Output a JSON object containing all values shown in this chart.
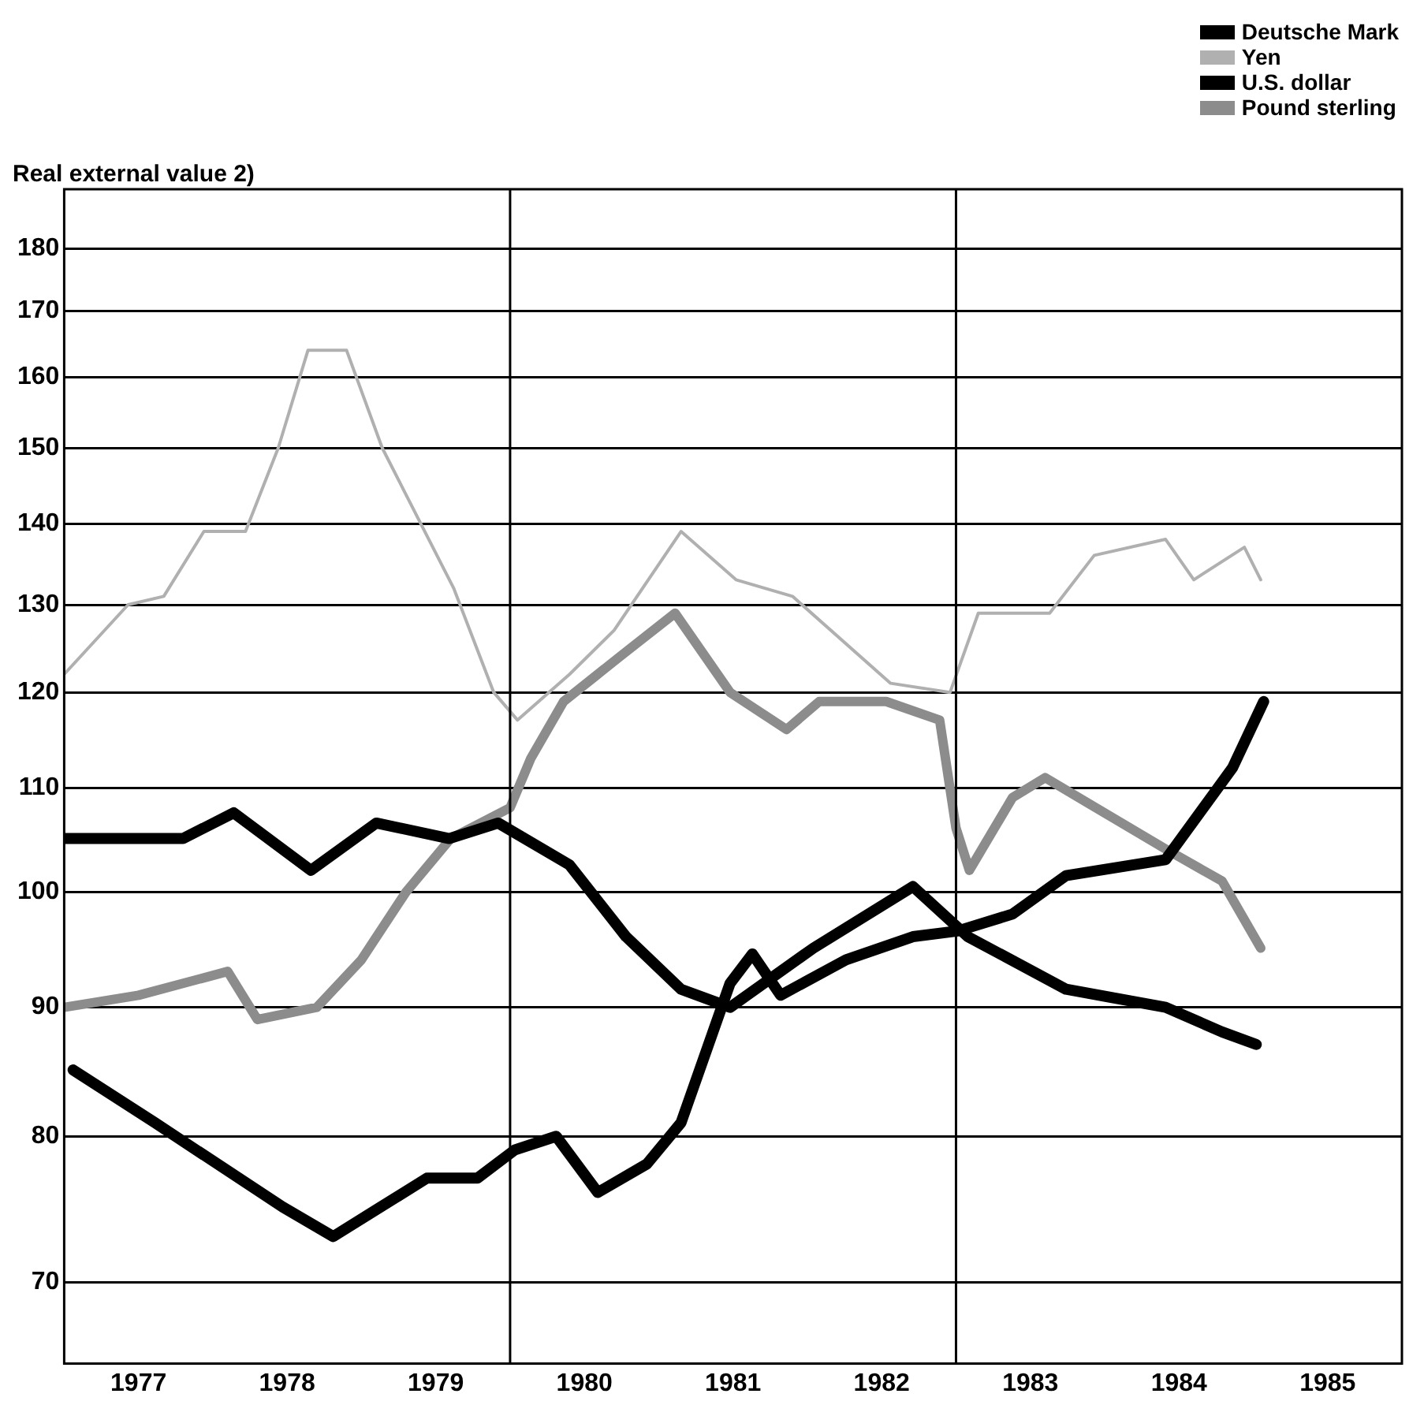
{
  "chart_data": {
    "type": "line",
    "title": "Real external value 2)",
    "series": [
      {
        "name": "Deutsche Mark",
        "color": "#000000",
        "x": [
          1977.0,
          1977.8,
          1978.14,
          1978.66,
          1979.1,
          1979.59,
          1979.92,
          1980.4,
          1980.78,
          1981.15,
          1981.48,
          1982.04,
          1982.71,
          1983.08,
          1983.74,
          1984.41,
          1984.79,
          1985.02
        ],
        "values": [
          105,
          105,
          107.5,
          102,
          106.5,
          105,
          106.5,
          102.5,
          96,
          91.5,
          90,
          95,
          100.5,
          96,
          91.5,
          90,
          88,
          87
        ]
      },
      {
        "name": "Yen",
        "color": "#b0b0b0",
        "x": [
          1977.0,
          1977.43,
          1977.67,
          1977.94,
          1978.22,
          1978.44,
          1978.64,
          1978.9,
          1979.14,
          1979.62,
          1979.89,
          1980.05,
          1980.4,
          1980.7,
          1981.15,
          1981.52,
          1981.9,
          1982.56,
          1982.96,
          1983.15,
          1983.63,
          1983.93,
          1984.41,
          1984.6,
          1984.94,
          1985.05
        ],
        "values": [
          122,
          130,
          131,
          139,
          139,
          150,
          164,
          164,
          150,
          132,
          120,
          117,
          122,
          127,
          139,
          133,
          131,
          121,
          120,
          129,
          129,
          136,
          138,
          133,
          137,
          133
        ]
      },
      {
        "name": "U.S. dollar",
        "color": "#000000",
        "x": [
          1977.06,
          1977.61,
          1978.47,
          1978.81,
          1979.44,
          1979.78,
          1980.03,
          1980.31,
          1980.59,
          1980.92,
          1981.15,
          1981.48,
          1981.63,
          1981.82,
          1982.26,
          1982.71,
          1983.01,
          1983.38,
          1983.74,
          1984.41,
          1984.86,
          1985.07
        ],
        "values": [
          85,
          81,
          75,
          73,
          77,
          77,
          79,
          80,
          76,
          78,
          81,
          92,
          94.5,
          91,
          94,
          96,
          96.5,
          98,
          101.5,
          103,
          112,
          119
        ]
      },
      {
        "name": "Pound sterling",
        "color": "#8c8c8c",
        "x": [
          1977.0,
          1977.5,
          1978.1,
          1978.3,
          1978.7,
          1979.0,
          1979.3,
          1979.6,
          1980.0,
          1980.14,
          1980.36,
          1980.74,
          1981.11,
          1981.48,
          1981.86,
          1982.08,
          1982.53,
          1982.89,
          1983.0,
          1983.09,
          1983.38,
          1983.6,
          1984.41,
          1984.79,
          1985.05
        ],
        "values": [
          90,
          91,
          93,
          89,
          90,
          94,
          100,
          105,
          108,
          113,
          119,
          124,
          129,
          120,
          116,
          119,
          119,
          117,
          106,
          102,
          109,
          111,
          104,
          101,
          95
        ]
      }
    ],
    "xlim": [
      1977,
      1986
    ],
    "xticks": [
      {
        "value": 1977.5,
        "label": "1977"
      },
      {
        "value": 1978.5,
        "label": "1978"
      },
      {
        "value": 1979.5,
        "label": "1979"
      },
      {
        "value": 1980.5,
        "label": "1980"
      },
      {
        "value": 1981.5,
        "label": "1981"
      },
      {
        "value": 1982.5,
        "label": "1982"
      },
      {
        "value": 1983.5,
        "label": "1983"
      },
      {
        "value": 1984.5,
        "label": "1984"
      },
      {
        "value": 1985.5,
        "label": "1985"
      }
    ],
    "ylim": [
      65,
      190
    ],
    "yticks": [
      70,
      80,
      90,
      100,
      110,
      120,
      130,
      140,
      150,
      160,
      170,
      180
    ],
    "log": true,
    "ref_lines": [
      {
        "axis": "x",
        "value": 1980,
        "color": "#000000"
      },
      {
        "axis": "x",
        "value": 1983,
        "color": "#000000"
      }
    ],
    "grid": "y",
    "legend": "top right"
  }
}
